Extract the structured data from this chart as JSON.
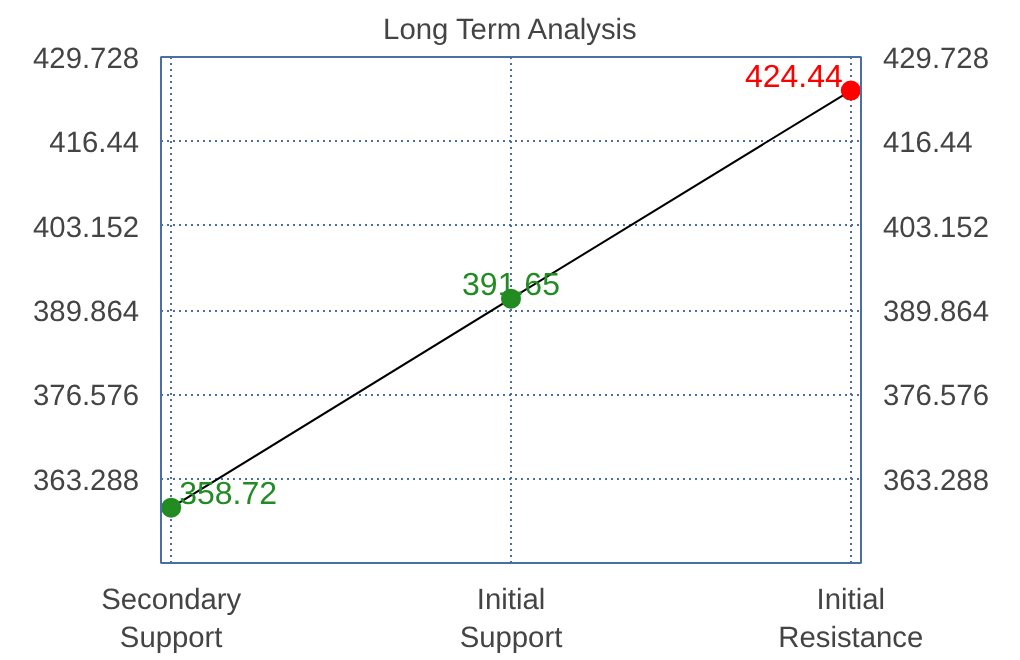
{
  "chart_data": {
    "type": "line",
    "title": "Long Term Analysis",
    "categories": [
      "Secondary Support",
      "Initial Support",
      "Initial Resistance"
    ],
    "series": [
      {
        "color": "#000000",
        "colors": [
          "#228b22",
          "#228b22",
          "#ff0000"
        ],
        "values": [
          358.72,
          391.65,
          424.44
        ]
      }
    ],
    "ylim": [
      350,
      429.728
    ],
    "yticks": [
      363.288,
      376.576,
      389.864,
      403.152,
      416.44,
      429.728
    ],
    "y2lim": [
      350,
      429.728
    ],
    "y2ticks": [
      363.288,
      376.576,
      389.864,
      403.152,
      416.44,
      429.728
    ],
    "data_labels": true,
    "grid": true,
    "marker": "circle"
  }
}
